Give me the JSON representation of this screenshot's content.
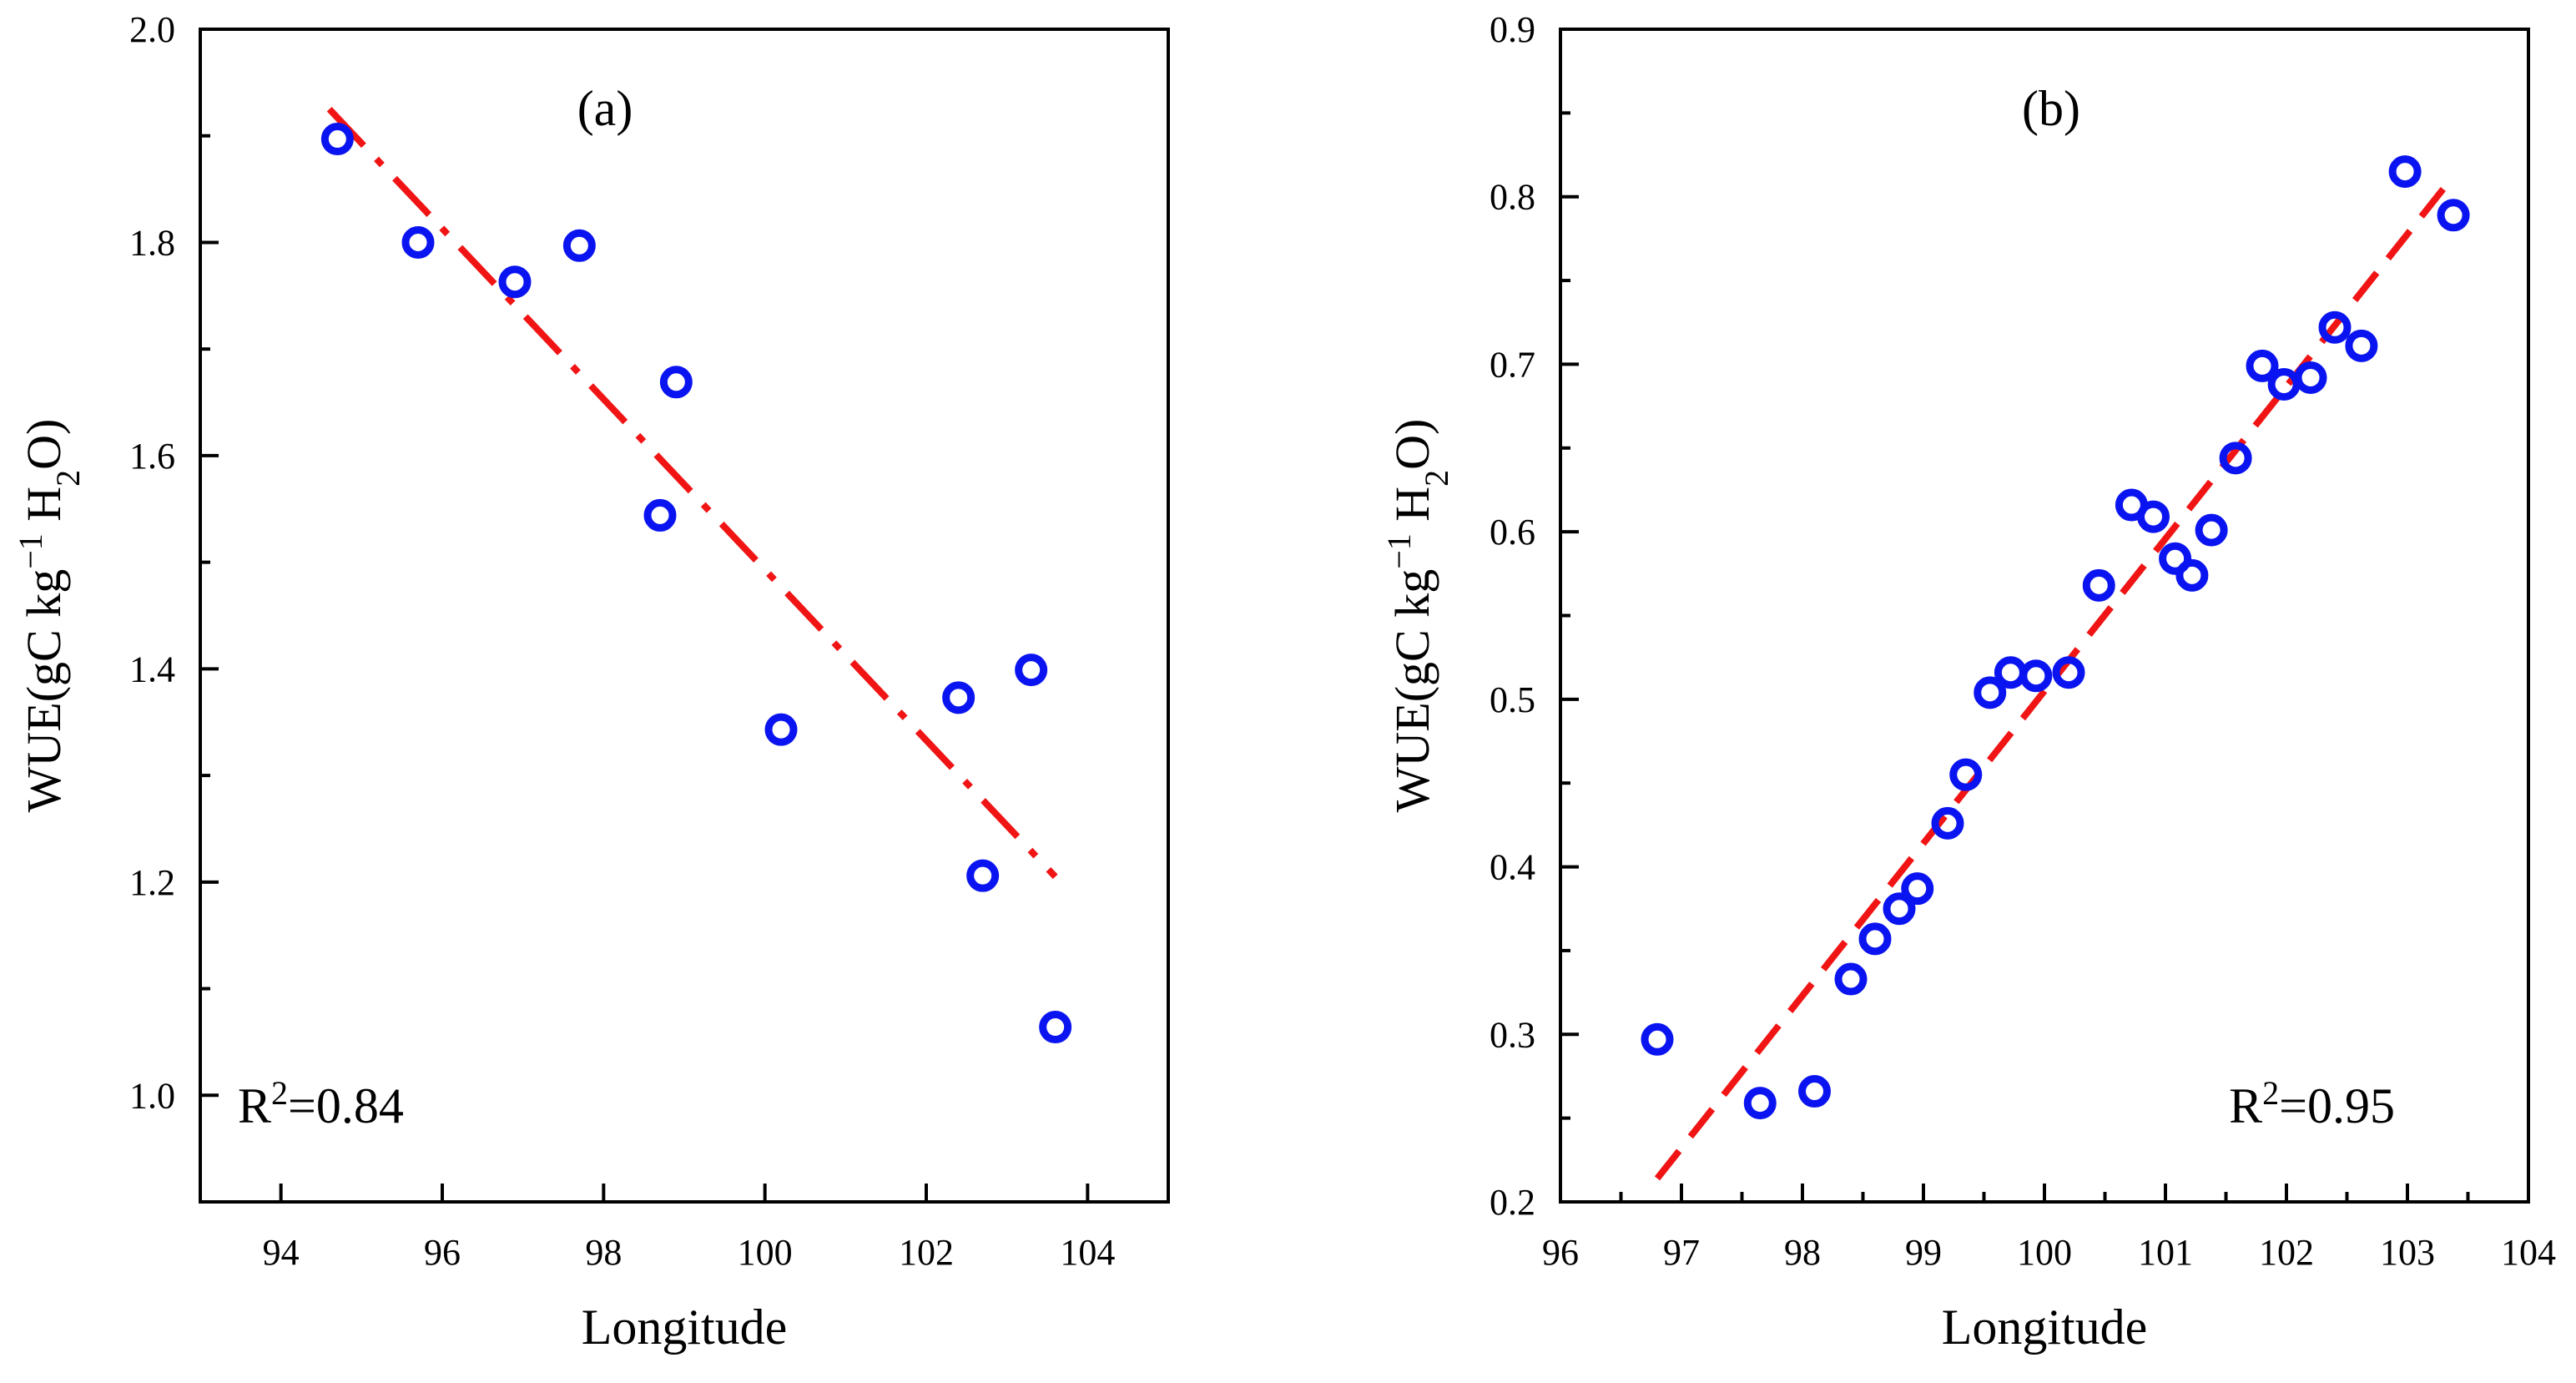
{
  "chart_data": [
    {
      "type": "scatter",
      "panel_label": "(a)",
      "title": "",
      "xlabel": "Longitude",
      "ylabel": "WUE(gC kg⁻¹ H₂O)",
      "ylabel_parts": {
        "main": "WUE(gC kg",
        "sup": "−1",
        "mid": " H",
        "sub": "2",
        "end": "O)"
      },
      "xlim": [
        93,
        105
      ],
      "ylim": [
        0.9,
        2.0
      ],
      "xticks": [
        94,
        96,
        98,
        100,
        102,
        104
      ],
      "xtick_labels": [
        "94",
        "96",
        "98",
        "100",
        "102",
        "104"
      ],
      "yticks": [
        1.0,
        1.2,
        1.4,
        1.6,
        1.8,
        2.0
      ],
      "ytick_labels": [
        "1.0",
        "1.2",
        "1.4",
        "1.6",
        "1.8",
        "2.0"
      ],
      "grid": false,
      "annotation": {
        "prefix": "R",
        "sup": "2",
        "suffix": "=0.84",
        "position": "bottom-left"
      },
      "points": {
        "x": [
          94.7,
          95.7,
          96.9,
          97.7,
          98.9,
          98.7,
          100.2,
          102.4,
          103.3,
          102.7,
          103.6
        ],
        "y": [
          1.897,
          1.8,
          1.763,
          1.797,
          1.669,
          1.544,
          1.343,
          1.373,
          1.399,
          1.206,
          1.064
        ]
      },
      "fit_line": {
        "x": [
          94.6,
          103.6
        ],
        "y": [
          1.925,
          1.205
        ],
        "style": "dash-dot"
      },
      "colors": {
        "points": "#0a14f0",
        "fit": "#f01414"
      }
    },
    {
      "type": "scatter",
      "panel_label": "(b)",
      "title": "",
      "xlabel": "Longitude",
      "ylabel": "WUE(gC kg⁻¹ H₂O)",
      "ylabel_parts": {
        "main": "WUE(gC kg",
        "sup": "−1",
        "mid": " H",
        "sub": "2",
        "end": "O)"
      },
      "xlim": [
        96,
        104
      ],
      "ylim": [
        0.2,
        0.9
      ],
      "xticks": [
        96,
        97,
        98,
        99,
        100,
        101,
        102,
        103,
        104
      ],
      "xtick_labels": [
        "96",
        "97",
        "98",
        "99",
        "100",
        "101",
        "102",
        "103",
        "104"
      ],
      "yticks": [
        0.2,
        0.3,
        0.4,
        0.5,
        0.6,
        0.7,
        0.8,
        0.9
      ],
      "ytick_labels": [
        "0.2",
        "0.3",
        "0.4",
        "0.5",
        "0.6",
        "0.7",
        "0.8",
        "0.9"
      ],
      "grid": false,
      "annotation": {
        "prefix": "R",
        "sup": "2",
        "suffix": "=0.95",
        "position": "bottom-right"
      },
      "points": {
        "x": [
          96.8,
          97.65,
          98.1,
          98.4,
          98.6,
          98.8,
          98.95,
          99.2,
          99.35,
          99.55,
          99.72,
          99.93,
          100.2,
          100.45,
          100.72,
          100.9,
          101.08,
          101.22,
          101.38,
          101.58,
          101.8,
          101.98,
          102.2,
          102.4,
          102.62,
          102.98,
          103.38
        ],
        "y": [
          0.297,
          0.259,
          0.266,
          0.333,
          0.357,
          0.375,
          0.387,
          0.426,
          0.455,
          0.504,
          0.516,
          0.514,
          0.516,
          0.568,
          0.616,
          0.609,
          0.584,
          0.574,
          0.601,
          0.644,
          0.699,
          0.688,
          0.692,
          0.722,
          0.711,
          0.815,
          0.789
        ]
      },
      "fit_line": {
        "x": [
          96.8,
          103.3
        ],
        "y": [
          0.214,
          0.805
        ],
        "style": "dashed"
      },
      "colors": {
        "points": "#0a14f0",
        "fit": "#f01414"
      }
    }
  ]
}
